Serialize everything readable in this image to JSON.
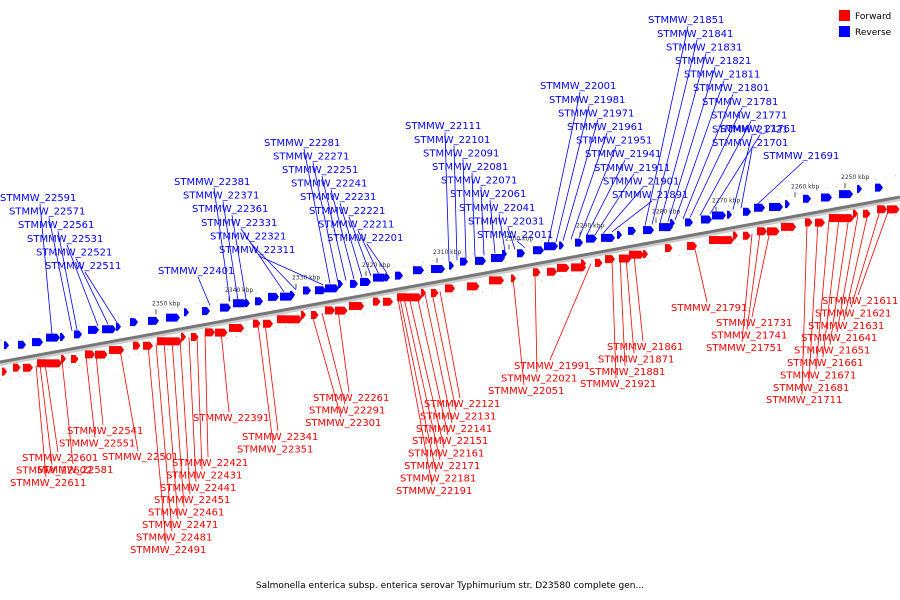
{
  "legend": {
    "items": [
      {
        "label": "Forward",
        "color": "#ff0000"
      },
      {
        "label": "Reverse",
        "color": "#0000ff"
      }
    ]
  },
  "caption": "Salmonella enterica subsp. enterica serovar Typhimurium str. D23580 complete gen...",
  "colors": {
    "forward": "#ff0000",
    "reverse": "#0000ff",
    "backbone": "#777777"
  },
  "scale": {
    "ticks": [
      "2250 kbp",
      "2260 kbp",
      "2270 kbp",
      "2280 kbp",
      "2290 kbp",
      "2300 kbp",
      "2310 kbp",
      "2320 kbp",
      "2330 kbp",
      "2340 kbp",
      "2350 kbp"
    ]
  },
  "reverse_genes": [
    "STMMW_21691",
    "STMMW_21701",
    "STMMW_21721",
    "STMMW_21761",
    "STMMW_21771",
    "STMMW_21781",
    "STMMW_21801",
    "STMMW_21811",
    "STMMW_21821",
    "STMMW_21831",
    "STMMW_21841",
    "STMMW_21851",
    "STMMW_21891",
    "STMMW_21901",
    "STMMW_21911",
    "STMMW_21941",
    "STMMW_21951",
    "STMMW_21961",
    "STMMW_21971",
    "STMMW_21981",
    "STMMW_22001",
    "STMMW_22011",
    "STMMW_22031",
    "STMMW_22041",
    "STMMW_22061",
    "STMMW_22071",
    "STMMW_22081",
    "STMMW_22091",
    "STMMW_22101",
    "STMMW_22111",
    "STMMW_22201",
    "STMMW_22211",
    "STMMW_22221",
    "STMMW_22231",
    "STMMW_22241",
    "STMMW_22251",
    "STMMW_22271",
    "STMMW_22281",
    "STMMW_22311",
    "STMMW_22321",
    "STMMW_22331",
    "STMMW_22361",
    "STMMW_22371",
    "STMMW_22381",
    "STMMW_22401",
    "STMMW_22511",
    "STMMW_22521",
    "STMMW_22531",
    "STMMW_22561",
    "STMMW_22571",
    "STMMW_22591"
  ],
  "forward_genes": [
    "STMMW_21611",
    "STMMW_21621",
    "STMMW_21631",
    "STMMW_21641",
    "STMMW_21651",
    "STMMW_21661",
    "STMMW_21671",
    "STMMW_21681",
    "STMMW_21711",
    "STMMW_21731",
    "STMMW_21741",
    "STMMW_21751",
    "STMMW_21791",
    "STMMW_21861",
    "STMMW_21871",
    "STMMW_21881",
    "STMMW_21921",
    "STMMW_21991",
    "STMMW_22021",
    "STMMW_22051",
    "STMMW_22121",
    "STMMW_22131",
    "STMMW_22141",
    "STMMW_22151",
    "STMMW_22161",
    "STMMW_22171",
    "STMMW_22181",
    "STMMW_22191",
    "STMMW_22261",
    "STMMW_22291",
    "STMMW_22301",
    "STMMW_22341",
    "STMMW_22351",
    "STMMW_22391",
    "STMMW_22421",
    "STMMW_22431",
    "STMMW_22441",
    "STMMW_22451",
    "STMMW_22461",
    "STMMW_22471",
    "STMMW_22481",
    "STMMW_22491",
    "STMMW_22501",
    "STMMW_22541",
    "STMMW_22551",
    "STMMW_22581",
    "STMMW_22601",
    "STMMW_22602",
    "STMMW_22611"
  ]
}
